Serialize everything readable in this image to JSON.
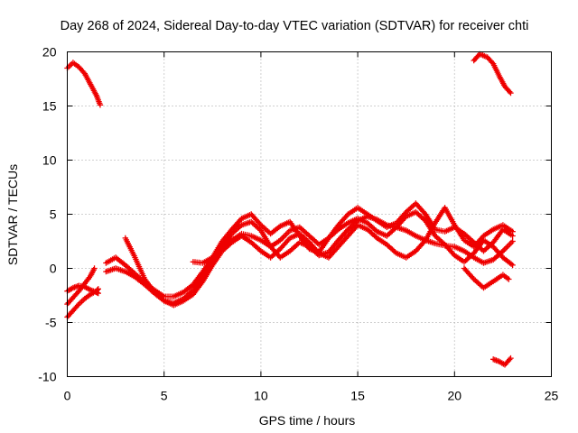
{
  "chart_data": {
    "type": "scatter",
    "title": "Day 268 of 2024, Sidereal Day-to-day VTEC variation (SDTVAR) for receiver chti",
    "xlabel": "GPS time / hours",
    "ylabel": "SDTVAR / TECUs",
    "xlim": [
      0,
      25
    ],
    "ylim": [
      -10,
      20
    ],
    "xticks": [
      0,
      5,
      10,
      15,
      20,
      25
    ],
    "yticks": [
      -10,
      -5,
      0,
      5,
      10,
      15,
      20
    ],
    "grid": true,
    "marker": "plus",
    "color": "#ee0000",
    "series": [
      {
        "name": "s1",
        "x": [
          0.0,
          0.3,
          0.6,
          0.9,
          1.2,
          1.5,
          1.7
        ],
        "y": [
          18.5,
          19.0,
          18.6,
          18.0,
          17.0,
          16.0,
          15.1
        ]
      },
      {
        "name": "s2",
        "x": [
          21.0,
          21.3,
          21.7,
          22.0,
          22.3,
          22.6,
          22.9
        ],
        "y": [
          19.2,
          19.8,
          19.5,
          18.9,
          17.8,
          16.8,
          16.2
        ]
      },
      {
        "name": "s3",
        "x": [
          0.0,
          0.3,
          0.6,
          0.9,
          1.2,
          1.5,
          1.6
        ],
        "y": [
          -4.5,
          -3.9,
          -3.3,
          -2.8,
          -2.4,
          -2.1,
          -1.9
        ]
      },
      {
        "name": "s4",
        "x": [
          0.0,
          0.3,
          0.6,
          0.9,
          1.2,
          1.4
        ],
        "y": [
          -3.3,
          -2.7,
          -2.1,
          -1.4,
          -0.7,
          0.0
        ]
      },
      {
        "name": "s5",
        "x": [
          0.0,
          0.3,
          0.6,
          0.9,
          1.2,
          1.5,
          1.6
        ],
        "y": [
          -2.1,
          -1.8,
          -1.6,
          -1.7,
          -2.0,
          -2.2,
          -2.3
        ]
      },
      {
        "name": "s6",
        "x": [
          2.0,
          2.5,
          3.0,
          3.5,
          4.0,
          4.5,
          5.0,
          5.5,
          6.0,
          6.5,
          7.0,
          7.5,
          8.0,
          8.5,
          9.0,
          9.5,
          10.0,
          10.5,
          11.0,
          11.5,
          12.0,
          12.5,
          13.0,
          13.5,
          14.0,
          14.5,
          15.0,
          15.5,
          16.0,
          16.5,
          17.0,
          17.5,
          18.0,
          18.5,
          19.0,
          19.5,
          20.0,
          20.5,
          21.0,
          21.5,
          22.0,
          22.5,
          23.0
        ],
        "y": [
          -0.3,
          0.0,
          -0.3,
          -0.8,
          -1.5,
          -2.3,
          -3.0,
          -3.2,
          -2.8,
          -2.0,
          -0.8,
          0.6,
          2.0,
          3.2,
          4.0,
          4.3,
          3.5,
          2.0,
          1.0,
          1.6,
          2.4,
          2.0,
          1.2,
          1.5,
          2.6,
          3.6,
          4.4,
          4.8,
          4.5,
          4.0,
          3.8,
          3.5,
          3.0,
          2.6,
          2.3,
          2.1,
          2.0,
          1.6,
          1.0,
          0.5,
          0.8,
          1.6,
          2.5
        ]
      },
      {
        "name": "s7",
        "x": [
          2.0,
          2.5,
          3.0,
          3.5,
          4.0,
          4.5,
          5.0,
          5.5,
          6.0,
          6.5,
          7.0,
          7.5,
          8.0,
          8.5,
          9.0,
          9.5,
          10.0,
          10.5,
          11.0,
          11.5,
          12.0,
          12.5,
          13.0,
          13.5,
          14.0,
          14.5,
          15.0,
          15.5,
          16.0,
          16.5,
          17.0,
          17.5,
          18.0,
          18.5,
          19.0,
          19.5,
          20.0,
          20.5,
          21.0,
          21.5,
          22.0,
          22.5,
          23.0
        ],
        "y": [
          0.5,
          1.0,
          0.3,
          -0.5,
          -1.3,
          -2.0,
          -2.6,
          -2.6,
          -2.2,
          -1.5,
          -0.3,
          1.0,
          2.5,
          3.6,
          4.6,
          5.0,
          4.0,
          3.2,
          3.9,
          4.3,
          3.0,
          1.8,
          1.5,
          2.8,
          4.0,
          5.0,
          5.6,
          5.0,
          4.4,
          3.8,
          4.2,
          5.2,
          6.0,
          5.0,
          3.6,
          3.4,
          3.8,
          3.2,
          2.4,
          1.6,
          2.4,
          3.6,
          3.0
        ]
      },
      {
        "name": "s8",
        "x": [
          3.0,
          3.5,
          4.0,
          4.5,
          5.0,
          5.5,
          6.0,
          6.5,
          7.0,
          7.5,
          8.0,
          8.5,
          9.0,
          9.5,
          10.0,
          10.5,
          11.0,
          11.5,
          12.0,
          12.5,
          13.0,
          13.5,
          14.0,
          14.5,
          15.0,
          15.5,
          16.0,
          16.5,
          17.0,
          17.5,
          18.0,
          18.5,
          19.0,
          19.5,
          20.0,
          20.5,
          21.0,
          21.5,
          22.0,
          22.5,
          23.0
        ],
        "y": [
          2.8,
          1.0,
          -1.0,
          -2.2,
          -3.0,
          -3.4,
          -3.0,
          -2.4,
          -1.2,
          0.3,
          1.6,
          2.4,
          3.0,
          2.4,
          1.6,
          1.0,
          1.8,
          2.8,
          3.2,
          2.4,
          1.4,
          1.0,
          2.0,
          3.0,
          4.0,
          3.6,
          2.8,
          2.2,
          1.4,
          1.0,
          1.6,
          2.6,
          4.2,
          5.6,
          4.0,
          2.6,
          2.0,
          3.0,
          3.6,
          4.0,
          3.4
        ]
      },
      {
        "name": "s9",
        "x": [
          6.5,
          7.0,
          7.5,
          8.0,
          8.5,
          9.0,
          9.5,
          10.0,
          10.5,
          11.0,
          11.5,
          12.0,
          12.5,
          13.0,
          13.5,
          14.0,
          14.5,
          15.0,
          15.5,
          16.0,
          16.5,
          17.0,
          17.5,
          18.0,
          18.5,
          19.0,
          19.5,
          20.0,
          20.5,
          21.0,
          21.5,
          22.0,
          22.5,
          23.0
        ],
        "y": [
          0.6,
          0.5,
          1.0,
          1.8,
          2.6,
          3.2,
          3.0,
          2.6,
          2.0,
          2.6,
          3.5,
          3.8,
          3.0,
          2.2,
          2.8,
          3.6,
          4.2,
          4.6,
          4.2,
          3.4,
          3.0,
          3.8,
          4.8,
          5.2,
          4.4,
          3.0,
          2.2,
          1.2,
          0.6,
          1.4,
          2.6,
          2.0,
          1.0,
          0.3
        ]
      },
      {
        "name": "s10",
        "x": [
          20.5,
          21.0,
          21.5,
          22.0,
          22.5,
          22.8
        ],
        "y": [
          0.0,
          -1.0,
          -1.8,
          -1.2,
          -0.6,
          -1.0
        ]
      },
      {
        "name": "s11",
        "x": [
          22.0,
          22.3,
          22.6,
          22.9
        ],
        "y": [
          -8.4,
          -8.6,
          -8.9,
          -8.3
        ]
      }
    ]
  }
}
